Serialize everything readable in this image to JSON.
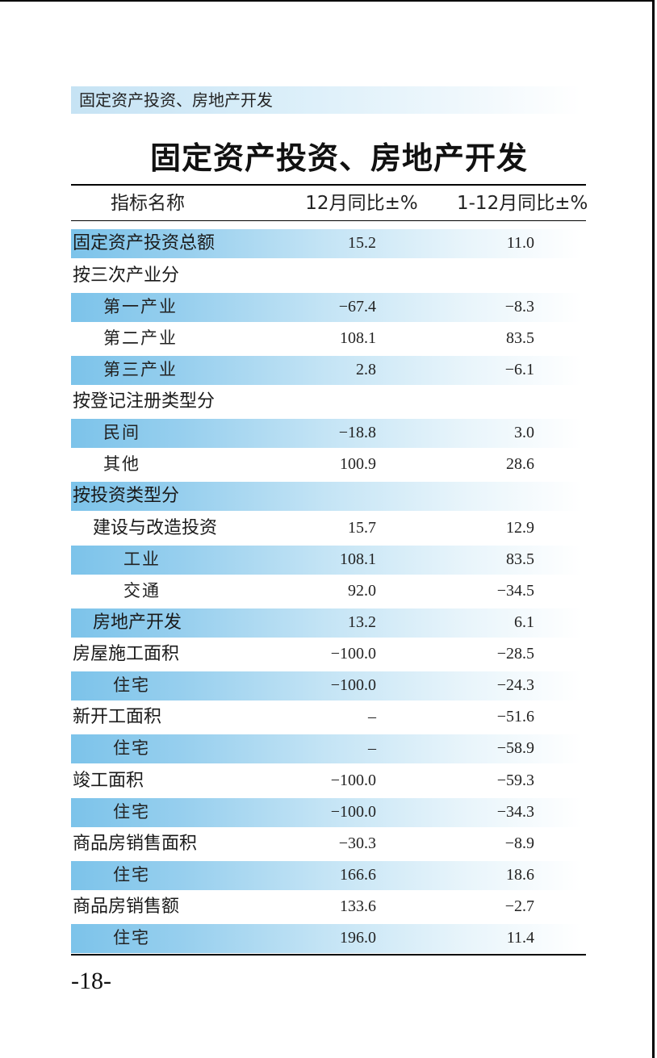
{
  "section_label": "固定资产投资、房地产开发",
  "title": "固定资产投资、房地产开发",
  "table": {
    "headers": {
      "name": "指标名称",
      "dec": "12月同比±%",
      "ytd": "1-12月同比±%"
    },
    "rows": [
      {
        "name": "固定资产投资总额",
        "dec": "15.2",
        "ytd": "11.0"
      },
      {
        "name": "按三次产业分"
      },
      {
        "name": "第一产业",
        "dec": "−67.4",
        "ytd": "−8.3"
      },
      {
        "name": "第二产业",
        "dec": "108.1",
        "ytd": "83.5"
      },
      {
        "name": "第三产业",
        "dec": "2.8",
        "ytd": "−6.1"
      },
      {
        "name": "按登记注册类型分"
      },
      {
        "name": "民间",
        "dec": "−18.8",
        "ytd": "3.0"
      },
      {
        "name": "其他",
        "dec": "100.9",
        "ytd": "28.6"
      },
      {
        "name": "按投资类型分"
      },
      {
        "name": "建设与改造投资",
        "dec": "15.7",
        "ytd": "12.9"
      },
      {
        "name": "工业",
        "dec": "108.1",
        "ytd": "83.5"
      },
      {
        "name": "交通",
        "dec": "92.0",
        "ytd": "−34.5"
      },
      {
        "name": "房地产开发",
        "dec": "13.2",
        "ytd": "6.1"
      },
      {
        "name": "房屋施工面积",
        "dec": "−100.0",
        "ytd": "−28.5"
      },
      {
        "name": "住宅",
        "dec": "−100.0",
        "ytd": "−24.3"
      },
      {
        "name": "新开工面积",
        "dec": "–",
        "ytd": "−51.6"
      },
      {
        "name": "住宅",
        "dec": "–",
        "ytd": "−58.9"
      },
      {
        "name": "竣工面积",
        "dec": "−100.0",
        "ytd": "−59.3"
      },
      {
        "name": "住宅",
        "dec": "−100.0",
        "ytd": "−34.3"
      },
      {
        "name": "商品房销售面积",
        "dec": "−30.3",
        "ytd": "−8.9"
      },
      {
        "name": "住宅",
        "dec": "166.6",
        "ytd": "18.6"
      },
      {
        "name": "商品房销售额",
        "dec": "133.6",
        "ytd": "−2.7"
      },
      {
        "name": "住宅",
        "dec": "196.0",
        "ytd": "11.4"
      }
    ]
  },
  "page_number": "-18-",
  "colors": {
    "row_band_blue": "#7cc3ea",
    "section_band_blue": "#c6e3f4",
    "text": "#1a1a1a",
    "rule": "#000000"
  }
}
